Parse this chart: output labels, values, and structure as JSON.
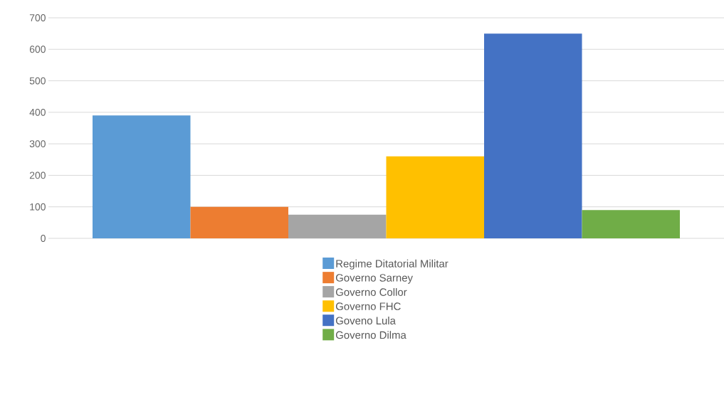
{
  "chart_data": {
    "type": "bar",
    "categories": [
      null
    ],
    "series": [
      {
        "name": "Regime Ditatorial Militar",
        "color": "#5b9bd5",
        "values": [
          390
        ]
      },
      {
        "name": "Governo Sarney",
        "color": "#ed7d31",
        "values": [
          100
        ]
      },
      {
        "name": "Governo Collor",
        "color": "#a5a5a5",
        "values": [
          75
        ]
      },
      {
        "name": "Governo FHC",
        "color": "#ffc000",
        "values": [
          260
        ]
      },
      {
        "name": "Goveno Lula",
        "color": "#4472c4",
        "values": [
          650
        ]
      },
      {
        "name": "Governo Dilma",
        "color": "#70ad47",
        "values": [
          90
        ]
      }
    ],
    "ylim": [
      0,
      700
    ],
    "yticks": [
      0,
      100,
      200,
      300,
      400,
      500,
      600,
      700
    ],
    "grid": "y",
    "legend": "bottom",
    "tick_labels": "y"
  }
}
